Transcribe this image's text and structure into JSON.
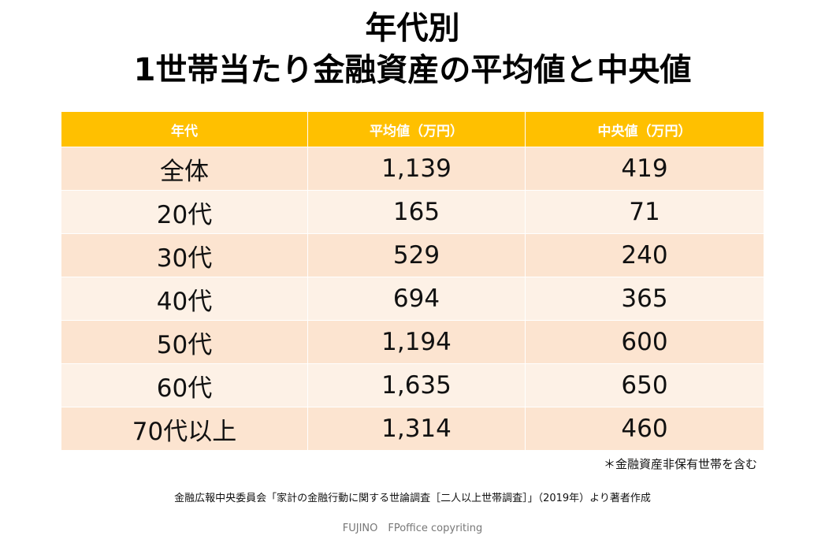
{
  "title": {
    "line1": "年代別",
    "line2": "1世帯当たり金融資産の平均値と中央値"
  },
  "colors": {
    "header_bg": "#ffc000",
    "row_odd_bg": "#fce4d0",
    "row_even_bg": "#fdf1e6",
    "header_text": "#ffffff"
  },
  "chart_data": {
    "type": "table",
    "title": "年代別 1世帯当たり金融資産の平均値と中央値",
    "columns": [
      "年代",
      "平均値（万円）",
      "中央値（万円）"
    ],
    "rows": [
      [
        "全体",
        "1,139",
        "419"
      ],
      [
        "20代",
        "165",
        "71"
      ],
      [
        "30代",
        "529",
        "240"
      ],
      [
        "40代",
        "694",
        "365"
      ],
      [
        "50代",
        "1,194",
        "600"
      ],
      [
        "60代",
        "1,635",
        "650"
      ],
      [
        "70代以上",
        "1,314",
        "460"
      ]
    ]
  },
  "note": "＊金融資産非保有世帯を含む",
  "source": "金融広報中央委員会「家計の金融行動に関する世論調査［二人以上世帯調査］」（2019年）より著者作成",
  "credit": "FUJINO　FPoffice copyriting"
}
